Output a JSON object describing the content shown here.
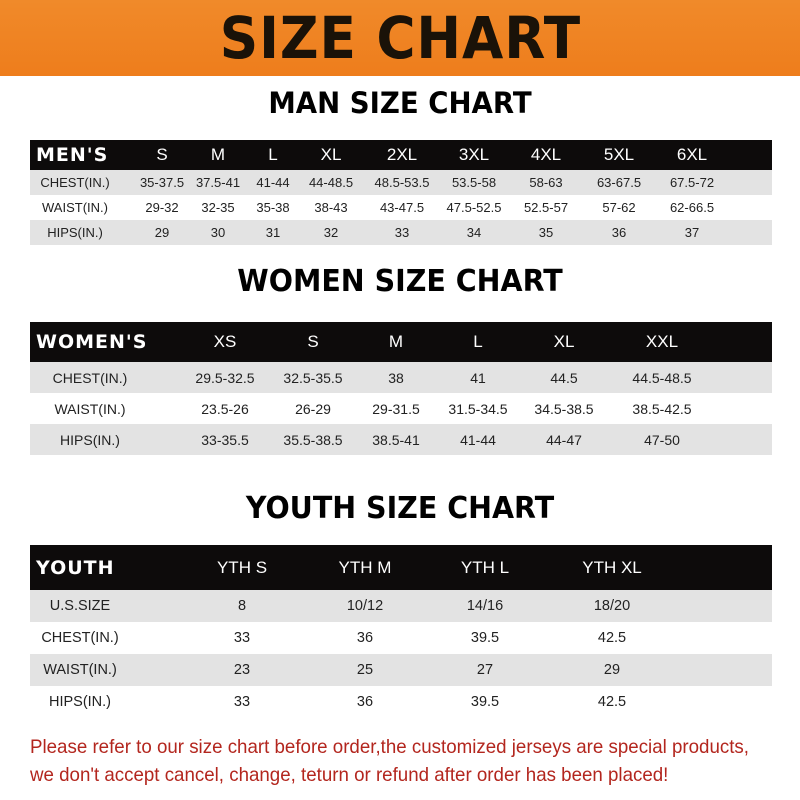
{
  "banner_title": "SIZE CHART",
  "men": {
    "title": "MAN SIZE CHART",
    "header": [
      "MEN'S",
      "S",
      "M",
      "L",
      "XL",
      "2XL",
      "3XL",
      "4XL",
      "5XL",
      "6XL"
    ],
    "rows": [
      [
        "CHEST(IN.)",
        "35-37.5",
        "37.5-41",
        "41-44",
        "44-48.5",
        "48.5-53.5",
        "53.5-58",
        "58-63",
        "63-67.5",
        "67.5-72"
      ],
      [
        "WAIST(IN.)",
        "29-32",
        "32-35",
        "35-38",
        "38-43",
        "43-47.5",
        "47.5-52.5",
        "52.5-57",
        "57-62",
        "62-66.5"
      ],
      [
        "HIPS(IN.)",
        "29",
        "30",
        "31",
        "32",
        "33",
        "34",
        "35",
        "36",
        "37"
      ]
    ]
  },
  "women": {
    "title": "WOMEN SIZE CHART",
    "header": [
      "WOMEN'S",
      "XS",
      "S",
      "M",
      "L",
      "XL",
      "XXL"
    ],
    "rows": [
      [
        "CHEST(IN.)",
        "29.5-32.5",
        "32.5-35.5",
        "38",
        "41",
        "44.5",
        "44.5-48.5"
      ],
      [
        "WAIST(IN.)",
        "23.5-26",
        "26-29",
        "29-31.5",
        "31.5-34.5",
        "34.5-38.5",
        "38.5-42.5"
      ],
      [
        "HIPS(IN.)",
        "33-35.5",
        "35.5-38.5",
        "38.5-41",
        "41-44",
        "44-47",
        "47-50"
      ]
    ]
  },
  "youth": {
    "title": "YOUTH SIZE CHART",
    "header": [
      "YOUTH",
      "YTH S",
      "YTH M",
      "YTH L",
      "YTH XL"
    ],
    "rows": [
      [
        "U.S.SIZE",
        "8",
        "10/12",
        "14/16",
        "18/20"
      ],
      [
        "CHEST(IN.)",
        "33",
        "36",
        "39.5",
        "42.5"
      ],
      [
        "WAIST(IN.)",
        "23",
        "25",
        "27",
        "29"
      ],
      [
        "HIPS(IN.)",
        "33",
        "36",
        "39.5",
        "42.5"
      ]
    ]
  },
  "notice": [
    "Please refer to our size chart before order,the customized jerseys are special products,",
    "we don't accept cancel, change, teturn or refund after order has been placed!"
  ]
}
